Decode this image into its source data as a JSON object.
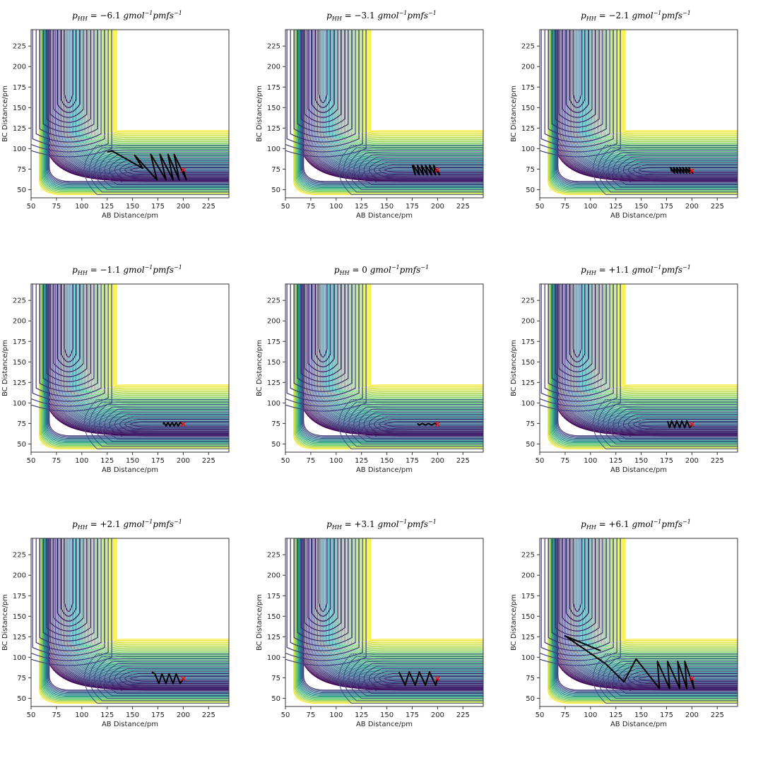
{
  "chart_data": [
    {
      "type": "contour",
      "title": "p_HH = −6.1 gmol⁻¹pmfs⁻¹",
      "p_value": "−6.1",
      "xlabel": "AB Distance/pm",
      "ylabel": "BC Distance/pm",
      "xlim": [
        50,
        245
      ],
      "ylim": [
        40,
        245
      ],
      "xticks": [
        50,
        75,
        100,
        125,
        150,
        175,
        200,
        225
      ],
      "yticks": [
        50,
        75,
        100,
        125,
        150,
        175,
        200,
        225
      ],
      "start": [
        200,
        74
      ],
      "trajectory": {
        "x": [
          200,
          203,
          191,
          196,
          185,
          190,
          177,
          183,
          168,
          174,
          152,
          160,
          130,
          125
        ],
        "y": [
          74,
          62,
          93,
          62,
          93,
          62,
          93,
          62,
          93,
          62,
          92,
          76,
          97,
          96
        ]
      }
    },
    {
      "type": "contour",
      "title": "p_HH = −3.1 gmol⁻¹pmfs⁻¹",
      "p_value": "−3.1",
      "xlabel": "AB Distance/pm",
      "ylabel": "BC Distance/pm",
      "xlim": [
        50,
        245
      ],
      "ylim": [
        40,
        245
      ],
      "xticks": [
        50,
        75,
        100,
        125,
        150,
        175,
        200,
        225
      ],
      "yticks": [
        50,
        75,
        100,
        125,
        150,
        175,
        200,
        225
      ],
      "start": [
        200,
        74
      ],
      "trajectory": {
        "x": [
          200,
          202,
          196,
          198,
          192,
          194,
          188,
          190,
          184,
          186,
          180,
          182,
          176,
          178,
          175
        ],
        "y": [
          74,
          68,
          80,
          68,
          80,
          68,
          80,
          68,
          80,
          68,
          80,
          68,
          80,
          68,
          80
        ]
      }
    },
    {
      "type": "contour",
      "title": "p_HH = −2.1 gmol⁻¹pmfs⁻¹",
      "p_value": "−2.1",
      "xlabel": "AB Distance/pm",
      "ylabel": "BC Distance/pm",
      "xlim": [
        50,
        245
      ],
      "ylim": [
        40,
        245
      ],
      "xticks": [
        50,
        75,
        100,
        125,
        150,
        175,
        200,
        225
      ],
      "yticks": [
        50,
        75,
        100,
        125,
        150,
        175,
        200,
        225
      ],
      "start": [
        200,
        73
      ],
      "trajectory": {
        "x": [
          200,
          201,
          197,
          198,
          194,
          195,
          191,
          192,
          188,
          189,
          185,
          186,
          182,
          183,
          179,
          180
        ],
        "y": [
          73,
          70,
          77,
          70,
          77,
          70,
          77,
          70,
          77,
          70,
          77,
          70,
          77,
          70,
          77,
          72
        ]
      }
    },
    {
      "type": "contour",
      "title": "p_HH = −1.1 gmol⁻¹pmfs⁻¹",
      "p_value": "−1.1",
      "xlabel": "AB Distance/pm",
      "ylabel": "BC Distance/pm",
      "xlim": [
        50,
        245
      ],
      "ylim": [
        40,
        245
      ],
      "xticks": [
        50,
        75,
        100,
        125,
        150,
        175,
        200,
        225
      ],
      "yticks": [
        50,
        75,
        100,
        125,
        150,
        175,
        200,
        225
      ],
      "start": [
        200,
        74
      ],
      "trajectory": {
        "x": [
          200,
          197,
          195,
          193,
          191,
          189,
          187,
          185,
          183,
          181,
          180
        ],
        "y": [
          74,
          76,
          72,
          76,
          72,
          76,
          72,
          76,
          72,
          76,
          74
        ]
      }
    },
    {
      "type": "contour",
      "title": "p_HH = 0 gmol⁻¹pmfs⁻¹",
      "p_value": "0",
      "xlabel": "AB Distance/pm",
      "ylabel": "BC Distance/pm",
      "xlim": [
        50,
        245
      ],
      "ylim": [
        40,
        245
      ],
      "xticks": [
        50,
        75,
        100,
        125,
        150,
        175,
        200,
        225
      ],
      "yticks": [
        50,
        75,
        100,
        125,
        150,
        175,
        200,
        225
      ],
      "start": [
        200,
        74
      ],
      "trajectory": {
        "x": [
          200,
          197,
          194,
          191,
          188,
          185,
          182,
          180
        ],
        "y": [
          74,
          75,
          73,
          75,
          73,
          75,
          73,
          75
        ]
      }
    },
    {
      "type": "contour",
      "title": "p_HH = +1.1 gmol⁻¹pmfs⁻¹",
      "p_value": "+1.1",
      "xlabel": "AB Distance/pm",
      "ylabel": "BC Distance/pm",
      "xlim": [
        50,
        245
      ],
      "ylim": [
        40,
        245
      ],
      "xticks": [
        50,
        75,
        100,
        125,
        150,
        175,
        200,
        225
      ],
      "yticks": [
        50,
        75,
        100,
        125,
        150,
        175,
        200,
        225
      ],
      "start": [
        200,
        74
      ],
      "trajectory": {
        "x": [
          200,
          198,
          195,
          193,
          190,
          188,
          185,
          183,
          180,
          178,
          176
        ],
        "y": [
          74,
          70,
          78,
          70,
          78,
          70,
          78,
          70,
          78,
          70,
          78
        ]
      }
    },
    {
      "type": "contour",
      "title": "p_HH = +2.1 gmol⁻¹pmfs⁻¹",
      "p_value": "+2.1",
      "xlabel": "AB Distance/pm",
      "ylabel": "BC Distance/pm",
      "xlim": [
        50,
        245
      ],
      "ylim": [
        40,
        245
      ],
      "xticks": [
        50,
        75,
        100,
        125,
        150,
        175,
        200,
        225
      ],
      "yticks": [
        50,
        75,
        100,
        125,
        150,
        175,
        200,
        225
      ],
      "start": [
        200,
        74
      ],
      "trajectory": {
        "x": [
          200,
          197,
          193,
          190,
          186,
          183,
          179,
          176,
          172,
          169
        ],
        "y": [
          74,
          68,
          80,
          68,
          80,
          68,
          80,
          68,
          80,
          82
        ]
      }
    },
    {
      "type": "contour",
      "title": "p_HH = +3.1 gmol⁻¹pmfs⁻¹",
      "p_value": "+3.1",
      "xlabel": "AB Distance/pm",
      "ylabel": "BC Distance/pm",
      "xlim": [
        50,
        245
      ],
      "ylim": [
        40,
        245
      ],
      "xticks": [
        50,
        75,
        100,
        125,
        150,
        175,
        200,
        225
      ],
      "yticks": [
        50,
        75,
        100,
        125,
        150,
        175,
        200,
        225
      ],
      "start": [
        200,
        74
      ],
      "trajectory": {
        "x": [
          200,
          198,
          192,
          188,
          182,
          178,
          172,
          168,
          162
        ],
        "y": [
          74,
          66,
          82,
          66,
          82,
          66,
          82,
          66,
          82
        ]
      }
    },
    {
      "type": "contour",
      "title": "p_HH = +6.1 gmol⁻¹pmfs⁻¹",
      "p_value": "+6.1",
      "xlabel": "AB Distance/pm",
      "ylabel": "BC Distance/pm",
      "xlim": [
        50,
        245
      ],
      "ylim": [
        40,
        245
      ],
      "xticks": [
        50,
        75,
        100,
        125,
        150,
        175,
        200,
        225
      ],
      "yticks": [
        50,
        75,
        100,
        125,
        150,
        175,
        200,
        225
      ],
      "start": [
        200,
        74
      ],
      "trajectory": {
        "x": [
          200,
          202,
          193,
          195,
          186,
          188,
          176,
          178,
          166,
          168,
          145,
          133,
          115,
          75,
          110
        ],
        "y": [
          74,
          62,
          95,
          62,
          95,
          62,
          95,
          62,
          95,
          62,
          98,
          70,
          92,
          126,
          108
        ]
      }
    }
  ]
}
